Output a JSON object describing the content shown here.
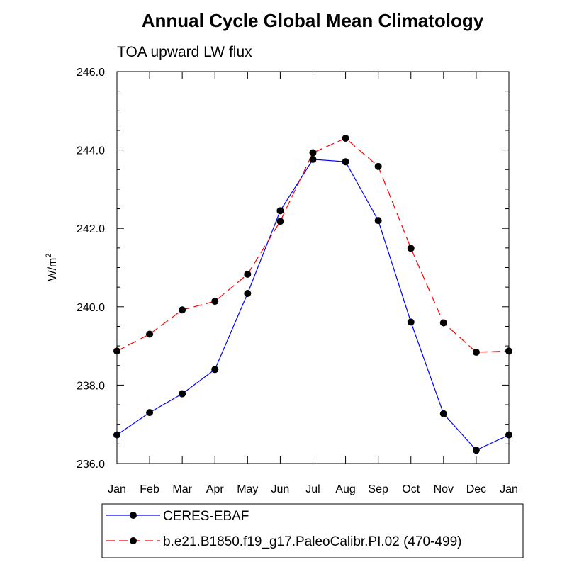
{
  "chart_data": {
    "type": "line",
    "title": "Annual Cycle Global Mean Climatology",
    "subtitle": "TOA upward LW flux",
    "xlabel": "",
    "ylabel": "W/m",
    "ylabel_superscript": "2",
    "ylim": [
      236.0,
      246.0
    ],
    "y_ticks": [
      "236.0",
      "238.0",
      "240.0",
      "242.0",
      "244.0",
      "246.0"
    ],
    "categories": [
      "Jan",
      "Feb",
      "Mar",
      "Apr",
      "May",
      "Jun",
      "Jul",
      "Aug",
      "Sep",
      "Oct",
      "Nov",
      "Dec",
      "Jan"
    ],
    "series": [
      {
        "name": "CERES-EBAF",
        "color": "#0000ff",
        "dash": "solid",
        "values": [
          236.73,
          237.3,
          237.78,
          238.4,
          240.34,
          242.45,
          243.76,
          243.7,
          242.2,
          239.61,
          237.27,
          236.34,
          236.73
        ]
      },
      {
        "name": "b.e21.B1850.f19_g17.PaleoCalibr.PI.02 (470-499)",
        "color": "#ff0000",
        "dash": "dashed",
        "values": [
          238.87,
          239.3,
          239.92,
          240.14,
          240.83,
          242.18,
          243.93,
          244.3,
          243.58,
          241.49,
          239.59,
          238.84,
          238.87
        ]
      }
    ],
    "legend_position": "bottom"
  }
}
